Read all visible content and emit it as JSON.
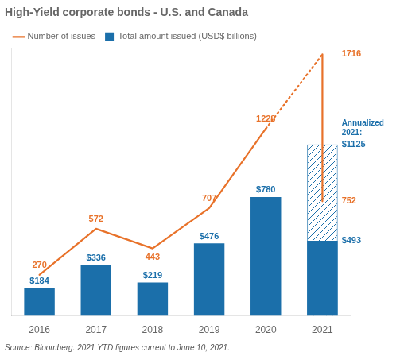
{
  "chart_data": {
    "type": "bar",
    "title": "High-Yield corporate bonds - U.S. and Canada",
    "categories": [
      "2016",
      "2017",
      "2018",
      "2019",
      "2020",
      "2021"
    ],
    "series": [
      {
        "name": "Total amount issued (USD$ billions)",
        "type": "bar",
        "color": "#1b6faa",
        "values": [
          184,
          336,
          219,
          476,
          780,
          493
        ],
        "value_labels": [
          "$184",
          "$336",
          "$219",
          "$476",
          "$780",
          "$493"
        ]
      },
      {
        "type": "bar",
        "color": "#1b6faa",
        "values": [
          null,
          null,
          null,
          null,
          null,
          1125
        ],
        "value_labels": [
          null,
          null,
          null,
          null,
          null,
          "$1125"
        ]
      },
      {
        "name": "Number of issues",
        "type": "line",
        "color": "#e8722a",
        "line_style": "solid",
        "values": [
          270,
          572,
          443,
          707,
          1228,
          752
        ]
      },
      {
        "type": "line",
        "color": "#e8722a",
        "line_style": "dotted",
        "values": [
          null,
          null,
          null,
          null,
          null,
          1716
        ]
      }
    ],
    "annotations": [
      "Annualized\n2021:"
    ],
    "source": "Source: Bloomberg. 2021 YTD figures current to June 10, 2021.",
    "ylim": [
      0,
      1750
    ],
    "tick_labels": "x",
    "grid": false,
    "legend": "upper left",
    "data_labels": true
  }
}
